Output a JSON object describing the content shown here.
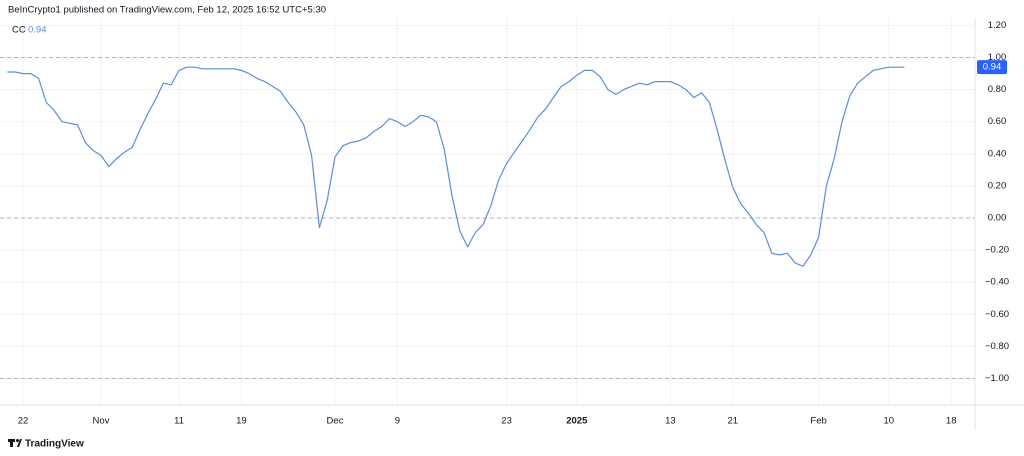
{
  "chart_data": {
    "type": "line",
    "title": "BeInCrypto1 published on TradingView.com, Feb 12, 2025 16:52 UTC+5:30",
    "brand": "TradingView",
    "categories": [
      null,
      null,
      "22",
      null,
      null,
      null,
      null,
      null,
      null,
      null,
      null,
      null,
      "Nov",
      null,
      null,
      null,
      null,
      null,
      null,
      null,
      null,
      null,
      "11",
      null,
      null,
      null,
      null,
      null,
      null,
      null,
      "19",
      null,
      null,
      null,
      null,
      null,
      null,
      null,
      null,
      null,
      null,
      null,
      "Dec",
      null,
      null,
      null,
      null,
      null,
      null,
      null,
      "9",
      null,
      null,
      null,
      null,
      null,
      null,
      null,
      null,
      null,
      null,
      null,
      null,
      null,
      "23",
      null,
      null,
      null,
      null,
      null,
      null,
      null,
      null,
      "2025",
      null,
      null,
      null,
      null,
      null,
      null,
      null,
      null,
      null,
      null,
      null,
      "13",
      null,
      null,
      null,
      null,
      null,
      null,
      null,
      "21",
      null,
      null,
      null,
      null,
      null,
      null,
      null,
      null,
      null,
      null,
      "Feb",
      null,
      null,
      null,
      null,
      null,
      null,
      null,
      null,
      "10",
      null,
      null,
      null,
      null,
      null,
      null,
      null,
      "18",
      null,
      null
    ],
    "series": [
      {
        "name": "CC",
        "color": "#5b8fd4",
        "values": [
          0.91,
          0.91,
          0.9,
          0.9,
          0.87,
          0.72,
          0.67,
          0.6,
          0.59,
          0.58,
          0.47,
          0.42,
          0.39,
          0.32,
          0.37,
          0.41,
          0.44,
          0.55,
          0.65,
          0.74,
          0.84,
          0.83,
          0.92,
          0.94,
          0.94,
          0.93,
          0.93,
          0.93,
          0.93,
          0.93,
          0.92,
          0.9,
          0.87,
          0.85,
          0.82,
          0.79,
          0.72,
          0.66,
          0.58,
          0.39,
          -0.06,
          0.11,
          0.38,
          0.45,
          0.47,
          0.48,
          0.5,
          0.54,
          0.57,
          0.62,
          0.6,
          0.57,
          0.6,
          0.64,
          0.63,
          0.6,
          0.43,
          0.14,
          -0.08,
          -0.18,
          -0.09,
          -0.04,
          0.08,
          0.24,
          0.34,
          0.41,
          0.48,
          0.55,
          0.63,
          0.68,
          0.75,
          0.82,
          0.85,
          0.89,
          0.92,
          0.92,
          0.88,
          0.8,
          0.77,
          0.8,
          0.82,
          0.84,
          0.83,
          0.85,
          0.85,
          0.85,
          0.83,
          0.8,
          0.75,
          0.78,
          0.72,
          0.55,
          0.36,
          0.19,
          0.09,
          0.03,
          -0.04,
          -0.09,
          -0.22,
          -0.23,
          -0.22,
          -0.28,
          -0.3,
          -0.23,
          -0.12,
          0.2,
          0.37,
          0.6,
          0.76,
          0.84,
          0.88,
          0.92,
          0.93,
          0.94,
          0.94,
          0.94,
          null,
          null,
          null,
          null,
          null,
          null,
          null,
          null
        ]
      }
    ],
    "ylim": [
      -1.16,
      1.25
    ],
    "yticks": [
      {
        "value": 1.2,
        "label": "1.20"
      },
      {
        "value": 1,
        "label": "1.00"
      },
      {
        "value": 0.8,
        "label": "0.80"
      },
      {
        "value": 0.6,
        "label": "0.60"
      },
      {
        "value": 0.4,
        "label": "0.40"
      },
      {
        "value": 0.2,
        "label": "0.20"
      },
      {
        "value": 0,
        "label": "0.00"
      },
      {
        "value": -0.2,
        "label": "−0.20"
      },
      {
        "value": -0.4,
        "label": "−0.40"
      },
      {
        "value": -0.6,
        "label": "−0.60"
      },
      {
        "value": -0.8,
        "label": "−0.80"
      },
      {
        "value": -1,
        "label": "−1.00"
      }
    ],
    "levels": [
      1,
      0,
      -1
    ],
    "grid": true
  }
}
